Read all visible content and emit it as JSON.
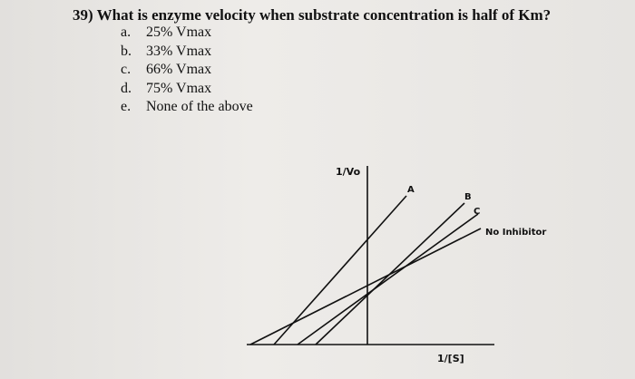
{
  "question": {
    "number": "39)",
    "text": "What is enzyme velocity when substrate concentration is half of Km?"
  },
  "options": [
    {
      "letter": "a.",
      "text": "25% Vmax"
    },
    {
      "letter": "b.",
      "text": "33% Vmax"
    },
    {
      "letter": "c.",
      "text": "66% Vmax"
    },
    {
      "letter": "d.",
      "text": "75% Vmax"
    },
    {
      "letter": "e.",
      "text": "None of the above"
    }
  ],
  "diagram": {
    "y_axis_label": "1/Vo",
    "x_axis_label": "1/[S]",
    "line_labels": [
      "A",
      "B",
      "C"
    ],
    "no_inhibitor_label": "No Inhibitor"
  }
}
